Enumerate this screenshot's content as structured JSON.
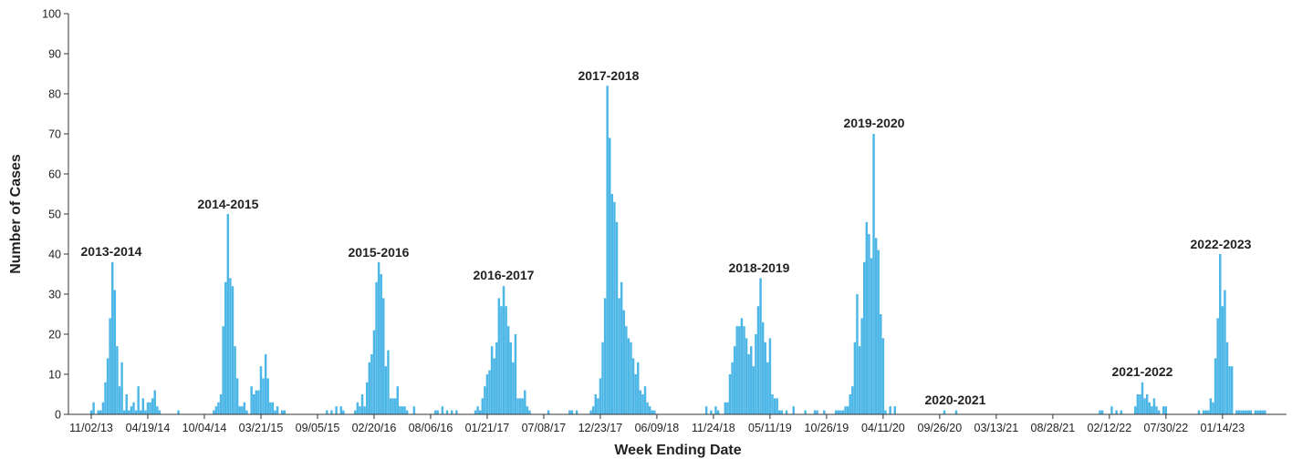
{
  "chart_data": {
    "type": "bar",
    "x_label": "Week Ending Date",
    "y_label": "Number of Cases",
    "color": "#4cb6e6",
    "ylim": [
      0,
      100
    ],
    "yticks": [
      0,
      10,
      20,
      30,
      40,
      50,
      60,
      70,
      80,
      90,
      100
    ],
    "annotations": [
      "2013-2014",
      "2014-2015",
      "2015-2016",
      "2016-2017",
      "2017-2018",
      "2018-2019",
      "2019-2020",
      "2020-2021",
      "2021-2022",
      "2022-2023"
    ],
    "categories": [
      "11/02/13",
      null,
      null,
      null,
      null,
      null,
      null,
      null,
      null,
      null,
      null,
      null,
      null,
      null,
      null,
      null,
      null,
      null,
      null,
      null,
      null,
      null,
      null,
      null,
      "04/19/14",
      null,
      null,
      null,
      null,
      null,
      null,
      null,
      null,
      null,
      null,
      null,
      null,
      null,
      null,
      null,
      null,
      null,
      null,
      null,
      null,
      null,
      null,
      null,
      "10/04/14",
      null,
      null,
      null,
      null,
      null,
      null,
      null,
      null,
      null,
      null,
      null,
      null,
      null,
      null,
      null,
      null,
      null,
      null,
      null,
      null,
      null,
      null,
      null,
      "03/21/15",
      null,
      null,
      null,
      null,
      null,
      null,
      null,
      null,
      null,
      null,
      null,
      null,
      null,
      null,
      null,
      null,
      null,
      null,
      null,
      null,
      null,
      null,
      null,
      "09/05/15",
      null,
      null,
      null,
      null,
      null,
      null,
      null,
      null,
      null,
      null,
      null,
      null,
      null,
      null,
      null,
      null,
      null,
      null,
      null,
      null,
      null,
      null,
      null,
      "02/20/16",
      null,
      null,
      null,
      null,
      null,
      null,
      null,
      null,
      null,
      null,
      null,
      null,
      null,
      null,
      null,
      null,
      null,
      null,
      null,
      null,
      null,
      null,
      null,
      "08/06/16",
      null,
      null,
      null,
      null,
      null,
      null,
      null,
      null,
      null,
      null,
      null,
      null,
      null,
      null,
      null,
      null,
      null,
      null,
      null,
      null,
      null,
      null,
      null,
      "01/21/17",
      null,
      null,
      null,
      null,
      null,
      null,
      null,
      null,
      null,
      null,
      null,
      null,
      null,
      null,
      null,
      null,
      null,
      null,
      null,
      null,
      null,
      null,
      null,
      "07/08/17",
      null,
      null,
      null,
      null,
      null,
      null,
      null,
      null,
      null,
      null,
      null,
      null,
      null,
      null,
      null,
      null,
      null,
      null,
      null,
      null,
      null,
      null,
      null,
      "12/23/17",
      null,
      null,
      null,
      null,
      null,
      null,
      null,
      null,
      null,
      null,
      null,
      null,
      null,
      null,
      null,
      null,
      null,
      null,
      null,
      null,
      null,
      null,
      null,
      "06/09/18",
      null,
      null,
      null,
      null,
      null,
      null,
      null,
      null,
      null,
      null,
      null,
      null,
      null,
      null,
      null,
      null,
      null,
      null,
      null,
      null,
      null,
      null,
      null,
      "11/24/18",
      null,
      null,
      null,
      null,
      null,
      null,
      null,
      null,
      null,
      null,
      null,
      null,
      null,
      null,
      null,
      null,
      null,
      null,
      null,
      null,
      null,
      null,
      null,
      "05/11/19",
      null,
      null,
      null,
      null,
      null,
      null,
      null,
      null,
      null,
      null,
      null,
      null,
      null,
      null,
      null,
      null,
      null,
      null,
      null,
      null,
      null,
      null,
      null,
      "10/26/19",
      null,
      null,
      null,
      null,
      null,
      null,
      null,
      null,
      null,
      null,
      null,
      null,
      null,
      null,
      null,
      null,
      null,
      null,
      null,
      null,
      null,
      null,
      null,
      "04/11/20",
      null,
      null,
      null,
      null,
      null,
      null,
      null,
      null,
      null,
      null,
      null,
      null,
      null,
      null,
      null,
      null,
      null,
      null,
      null,
      null,
      null,
      null,
      null,
      "09/26/20",
      null,
      null,
      null,
      null,
      null,
      null,
      null,
      null,
      null,
      null,
      null,
      null,
      null,
      null,
      null,
      null,
      null,
      null,
      null,
      null,
      null,
      null,
      null,
      "03/13/21",
      null,
      null,
      null,
      null,
      null,
      null,
      null,
      null,
      null,
      null,
      null,
      null,
      null,
      null,
      null,
      null,
      null,
      null,
      null,
      null,
      null,
      null,
      null,
      "08/28/21",
      null,
      null,
      null,
      null,
      null,
      null,
      null,
      null,
      null,
      null,
      null,
      null,
      null,
      null,
      null,
      null,
      null,
      null,
      null,
      null,
      null,
      null,
      null,
      "02/12/22",
      null,
      null,
      null,
      null,
      null,
      null,
      null,
      null,
      null,
      null,
      null,
      null,
      null,
      null,
      null,
      null,
      null,
      null,
      null,
      null,
      null,
      null,
      null,
      "07/30/22",
      null,
      null,
      null,
      null,
      null,
      null,
      null,
      null,
      null,
      null,
      null,
      null,
      null,
      null,
      null,
      null,
      null,
      null,
      null,
      null,
      null,
      null,
      null,
      "01/14/23",
      null,
      null,
      null,
      null,
      null,
      null,
      null,
      null,
      null,
      null,
      null,
      null,
      null,
      null,
      null,
      null,
      null,
      null,
      null
    ],
    "values": [
      1,
      3,
      0,
      1,
      1,
      3,
      8,
      14,
      24,
      38,
      31,
      17,
      7,
      13,
      1,
      5,
      1,
      2,
      3,
      1,
      7,
      1,
      4,
      1,
      3,
      3,
      4,
      6,
      2,
      1,
      0,
      0,
      0,
      0,
      0,
      0,
      0,
      1,
      0,
      0,
      0,
      0,
      0,
      0,
      0,
      0,
      0,
      0,
      0,
      0,
      0,
      0,
      1,
      2,
      3,
      5,
      22,
      33,
      50,
      34,
      32,
      17,
      9,
      2,
      2,
      3,
      1,
      0,
      7,
      5,
      6,
      6,
      12,
      9,
      15,
      9,
      3,
      3,
      1,
      2,
      0,
      1,
      1,
      0,
      0,
      0,
      0,
      0,
      0,
      0,
      0,
      0,
      0,
      0,
      0,
      0,
      0,
      0,
      0,
      0,
      1,
      0,
      1,
      0,
      2,
      0,
      2,
      1,
      0,
      0,
      0,
      0,
      1,
      3,
      2,
      5,
      2,
      8,
      13,
      15,
      21,
      33,
      38,
      35,
      29,
      12,
      16,
      4,
      4,
      4,
      7,
      2,
      2,
      2,
      1,
      0,
      0,
      2,
      0,
      0,
      0,
      0,
      0,
      0,
      0,
      0,
      1,
      1,
      0,
      2,
      0,
      1,
      0,
      1,
      0,
      1,
      0,
      0,
      0,
      0,
      0,
      0,
      0,
      1,
      2,
      1,
      4,
      7,
      10,
      11,
      17,
      14,
      18,
      29,
      27,
      32,
      27,
      22,
      18,
      13,
      20,
      4,
      4,
      4,
      6,
      2,
      1,
      0,
      0,
      0,
      0,
      0,
      0,
      0,
      1,
      0,
      0,
      0,
      0,
      0,
      0,
      0,
      0,
      1,
      1,
      0,
      1,
      0,
      0,
      0,
      0,
      0,
      1,
      2,
      5,
      4,
      9,
      18,
      29,
      82,
      69,
      55,
      53,
      48,
      29,
      33,
      26,
      22,
      19,
      18,
      14,
      10,
      13,
      6,
      5,
      7,
      3,
      2,
      1,
      1,
      0,
      0,
      0,
      0,
      0,
      0,
      0,
      0,
      0,
      0,
      0,
      0,
      0,
      0,
      0,
      0,
      0,
      0,
      0,
      0,
      0,
      2,
      0,
      1,
      0,
      2,
      1,
      0,
      0,
      3,
      3,
      10,
      13,
      17,
      22,
      22,
      24,
      22,
      19,
      15,
      17,
      12,
      20,
      27,
      34,
      23,
      18,
      13,
      19,
      5,
      4,
      4,
      1,
      1,
      0,
      1,
      0,
      0,
      2,
      0,
      0,
      0,
      0,
      1,
      0,
      0,
      0,
      1,
      1,
      0,
      0,
      1,
      0,
      0,
      0,
      0,
      1,
      1,
      1,
      1,
      2,
      2,
      5,
      7,
      18,
      30,
      17,
      24,
      38,
      48,
      45,
      39,
      70,
      44,
      41,
      25,
      19,
      1,
      0,
      2,
      0,
      2,
      0,
      0,
      0,
      0,
      0,
      0,
      0,
      0,
      0,
      0,
      0,
      0,
      0,
      0,
      0,
      0,
      0,
      0,
      0,
      0,
      1,
      0,
      0,
      0,
      0,
      1,
      0,
      0,
      0,
      0,
      0,
      0,
      0,
      0,
      0,
      0,
      0,
      0,
      0,
      0,
      0,
      0,
      0,
      0,
      0,
      0,
      0,
      0,
      0,
      0,
      0,
      0,
      0,
      0,
      0,
      0,
      0,
      0,
      0,
      0,
      0,
      0,
      0,
      0,
      0,
      0,
      0,
      0,
      0,
      0,
      0,
      0,
      0,
      0,
      0,
      0,
      0,
      0,
      0,
      0,
      0,
      0,
      0,
      0,
      0,
      0,
      1,
      1,
      0,
      0,
      0,
      2,
      0,
      1,
      0,
      1,
      0,
      0,
      0,
      0,
      0,
      2,
      5,
      5,
      8,
      4,
      5,
      3,
      2,
      4,
      2,
      1,
      0,
      2,
      2,
      0,
      0,
      0,
      0,
      0,
      0,
      0,
      0,
      0,
      0,
      0,
      0,
      0,
      1,
      0,
      1,
      1,
      1,
      4,
      3,
      14,
      24,
      40,
      27,
      31,
      18,
      12,
      12,
      0,
      1,
      1,
      1,
      1,
      1,
      1,
      1,
      0,
      1,
      1,
      1,
      1,
      1,
      0
    ]
  }
}
